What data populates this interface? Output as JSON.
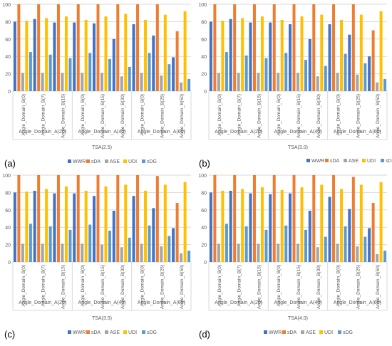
{
  "colors": {
    "WWR": "#4472c4",
    "sDA": "#ed7d31",
    "ASE": "#a5a5a5",
    "UDI": "#ffc000",
    "sDG": "#5b9bd5",
    "grid": "#d9d9d9",
    "axis_text": "#595959"
  },
  "chart_data": [
    {
      "type": "bar",
      "panel_label": "(a)",
      "title": "",
      "xlabel": "TSA(2.5)",
      "ylabel": "",
      "ylim": [
        0,
        100
      ],
      "yticks": [
        0,
        20,
        40,
        60,
        80,
        100
      ],
      "grid": true,
      "legend": "bottom",
      "groups": [
        {
          "label": "Angle_Domain_A(20)",
          "categories": [
            "Angle_Domain_B(0)",
            "Angle_Domain_B(7)",
            "Angle_Domain_B(15)"
          ]
        },
        {
          "label": "Angle_Domain_A(40)",
          "categories": [
            "Angle_Domain_B(0)",
            "Angle_Domain_B(15)",
            "Angle_Domain_B(30)"
          ]
        },
        {
          "label": "Angle_Domain_A(60)",
          "categories": [
            "Angle_Domain_B(0)",
            "Angle_Domain_B(25)",
            "Angle_Domain_B(50)"
          ]
        }
      ],
      "series": [
        {
          "name": "WWR",
          "values": [
            80,
            83,
            79,
            79,
            78,
            60,
            77,
            64,
            39
          ]
        },
        {
          "name": "sDA",
          "values": [
            100,
            100,
            100,
            100,
            100,
            100,
            100,
            100,
            69
          ]
        },
        {
          "name": "ASE",
          "values": [
            21,
            21,
            21,
            21,
            21,
            17,
            21,
            18,
            10
          ]
        },
        {
          "name": "UDI",
          "values": [
            81,
            84,
            86,
            82,
            86,
            89,
            82,
            88,
            92
          ]
        },
        {
          "name": "sDG",
          "values": [
            45,
            42,
            38,
            44,
            37,
            28,
            44,
            31,
            14
          ]
        }
      ]
    },
    {
      "type": "bar",
      "panel_label": "(b)",
      "title": "",
      "xlabel": "TSA(3.0)",
      "ylabel": "",
      "ylim": [
        0,
        100
      ],
      "yticks": [
        0,
        20,
        40,
        60,
        80,
        100
      ],
      "grid": true,
      "legend": "top-right",
      "groups": [
        {
          "label": "Angle_Domain_A(20)",
          "categories": [
            "Angle_Domain_B(0)",
            "Angle_Domain_B(7)",
            "Angle_Domain_B(15)"
          ]
        },
        {
          "label": "Angle_Domain_A(40)",
          "categories": [
            "Angle_Domain_B(0)",
            "Angle_Domain_B(15)",
            "Angle_Domain_B(30)"
          ]
        },
        {
          "label": "Angle_Domain_A(60)",
          "categories": [
            "Angle_Domain_B(0)",
            "Angle_Domain_B(25)",
            "Angle_Domain_B(50)"
          ]
        }
      ],
      "series": [
        {
          "name": "WWR",
          "values": [
            80,
            83,
            79,
            79,
            77,
            60,
            77,
            65,
            40
          ]
        },
        {
          "name": "sDA",
          "values": [
            100,
            100,
            100,
            100,
            100,
            100,
            100,
            100,
            70
          ]
        },
        {
          "name": "ASE",
          "values": [
            21,
            21,
            21,
            21,
            21,
            17,
            21,
            19,
            10
          ]
        },
        {
          "name": "UDI",
          "values": [
            81,
            84,
            86,
            82,
            86,
            88,
            82,
            88,
            92
          ]
        },
        {
          "name": "sDG",
          "values": [
            45,
            41,
            38,
            44,
            36,
            29,
            43,
            32,
            14
          ]
        }
      ]
    },
    {
      "type": "bar",
      "panel_label": "(c)",
      "title": "",
      "xlabel": "TSA(3.5)",
      "ylabel": "",
      "ylim": [
        0,
        100
      ],
      "yticks": [
        0,
        20,
        40,
        60,
        80,
        100
      ],
      "grid": true,
      "legend": "bottom",
      "groups": [
        {
          "label": "Angle_Domain_A(20)",
          "categories": [
            "Angle_Domain_B(0)",
            "Angle_Domain_B(7)",
            "Angle_Domain_B(15)"
          ]
        },
        {
          "label": "Angle_Domain_A(40)",
          "categories": [
            "Angle_Domain_B(0)",
            "Angle_Domain_B(15)",
            "Angle_Domain_B(30)"
          ]
        },
        {
          "label": "Angle_Domain_A(60)",
          "categories": [
            "Angle_Domain_B(0)",
            "Angle_Domain_B(25)",
            "Angle_Domain_B(50)"
          ]
        }
      ],
      "series": [
        {
          "name": "WWR",
          "values": [
            80,
            82,
            79,
            79,
            76,
            59,
            76,
            62,
            39
          ]
        },
        {
          "name": "sDA",
          "values": [
            100,
            100,
            100,
            100,
            100,
            100,
            100,
            99,
            68
          ]
        },
        {
          "name": "ASE",
          "values": [
            21,
            21,
            21,
            21,
            20,
            17,
            21,
            18,
            10
          ]
        },
        {
          "name": "UDI",
          "values": [
            81,
            84,
            87,
            82,
            87,
            89,
            82,
            89,
            92
          ]
        },
        {
          "name": "sDG",
          "values": [
            44,
            41,
            37,
            43,
            36,
            28,
            42,
            30,
            13
          ]
        }
      ]
    },
    {
      "type": "bar",
      "panel_label": "(d)",
      "title": "",
      "xlabel": "TSA(4.0)",
      "ylabel": "",
      "ylim": [
        0,
        100
      ],
      "yticks": [
        0,
        20,
        40,
        60,
        80,
        100
      ],
      "grid": true,
      "legend": "bottom",
      "groups": [
        {
          "label": "Angle_Domain_A(20)",
          "categories": [
            "Angle_Domain_B(0)",
            "Angle_Domain_B(7)",
            "Angle_Domain_B(15)"
          ]
        },
        {
          "label": "Angle_Domain_A(40)",
          "categories": [
            "Angle_Domain_B(0)",
            "Angle_Domain_B(15)",
            "Angle_Domain_B(30)"
          ]
        },
        {
          "label": "Angle_Domain_A(60)",
          "categories": [
            "Angle_Domain_B(0)",
            "Angle_Domain_B(25)",
            "Angle_Domain_B(50)"
          ]
        }
      ],
      "series": [
        {
          "name": "WWR",
          "values": [
            80,
            82,
            79,
            78,
            79,
            59,
            75,
            61,
            39
          ]
        },
        {
          "name": "sDA",
          "values": [
            100,
            100,
            100,
            100,
            100,
            100,
            100,
            98,
            68
          ]
        },
        {
          "name": "ASE",
          "values": [
            21,
            21,
            21,
            21,
            21,
            17,
            21,
            18,
            9
          ]
        },
        {
          "name": "UDI",
          "values": [
            82,
            84,
            86,
            83,
            86,
            89,
            84,
            89,
            92
          ]
        },
        {
          "name": "sDG",
          "values": [
            44,
            41,
            37,
            42,
            37,
            29,
            41,
            29,
            13
          ]
        }
      ]
    }
  ]
}
